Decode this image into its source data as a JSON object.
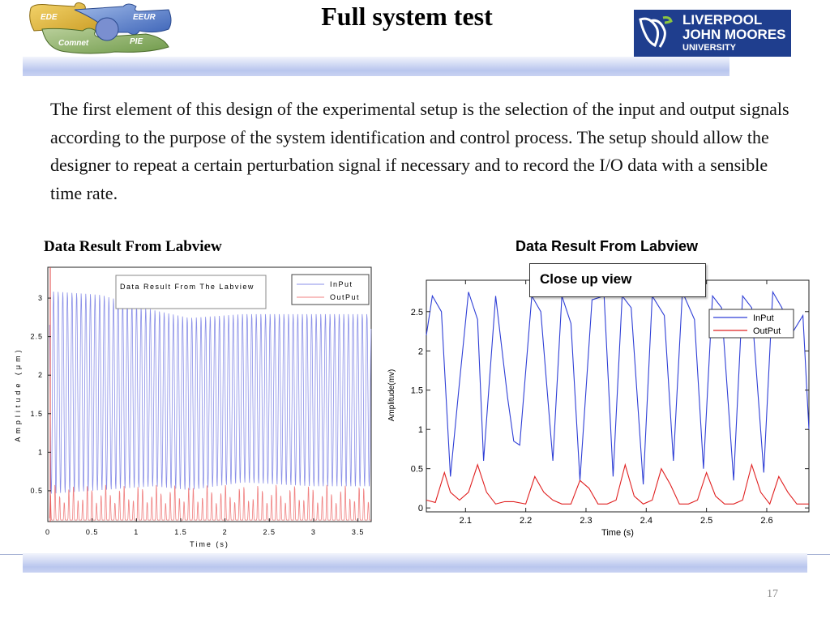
{
  "slide": {
    "title": "Full system test",
    "body": "The first element of this design of the experimental setup is the selection of the input and output signals according to the purpose of the system identification and control process. The setup should allow the designer to repeat a certain perturbation signal if necessary and to record the I/O data with a sensible time rate.",
    "left_caption": "Data Result From Labview",
    "right_caption": "Data Result From Labview",
    "closeup_label": "Close up  view",
    "page_number": "17"
  },
  "logos": {
    "puzzle_text": [
      "EDE",
      "EEUR",
      "Comnet",
      "PIE"
    ],
    "university_lines": [
      "LIVERPOOL",
      "JOHN MOORES",
      "UNIVERSITY"
    ]
  },
  "colors": {
    "input": "#2f3fd6",
    "output": "#e02020",
    "banner": "#1f3e8e"
  },
  "chart_data": [
    {
      "type": "line",
      "title": "Data Result From The Labview",
      "xlabel": "Time (s)",
      "ylabel": "Amplitude (μm)",
      "xlim": [
        0,
        3.65
      ],
      "ylim": [
        0.1,
        3.4
      ],
      "x_ticks": [
        "0",
        "0.5",
        "1",
        "1.5",
        "2",
        "2.5",
        "3",
        "3.5"
      ],
      "y_ticks": [
        "0.5",
        "1",
        "1.5",
        "2",
        "2.5",
        "3"
      ],
      "legend_position": "top-right",
      "series": [
        {
          "name": "InPut",
          "color": "#8a8fe8",
          "description_values": {
            "period_s": 0.052,
            "envelope_t": [
              0,
              0.6,
              1.2,
              1.6,
              2.2,
              3.0,
              3.65
            ],
            "max": [
              3.1,
              3.05,
              2.85,
              2.75,
              2.8,
              2.8,
              2.8
            ],
            "min": [
              0.45,
              0.5,
              0.55,
              0.5,
              0.6,
              0.55,
              0.55
            ]
          }
        },
        {
          "name": "OutPut",
          "color": "#f08080",
          "description_values": {
            "period_s": 0.052,
            "peak_min": 0.35,
            "peak_max": 0.6,
            "baseline": 0.12
          }
        }
      ]
    },
    {
      "type": "line",
      "xlabel": "Time (s)",
      "ylabel": "Amplitude(mv)",
      "xlim": [
        2.035,
        2.67
      ],
      "ylim": [
        -0.05,
        2.9
      ],
      "x_ticks": [
        "2.1",
        "2.2",
        "2.3",
        "2.4",
        "2.5",
        "2.6"
      ],
      "y_ticks": [
        "0",
        "0.5",
        "1",
        "1.5",
        "2",
        "2.5"
      ],
      "legend_position": "top-right",
      "series": [
        {
          "name": "InPut",
          "color": "#2f3fd6",
          "x": [
            2.035,
            2.045,
            2.06,
            2.075,
            2.09,
            2.105,
            2.12,
            2.13,
            2.15,
            2.17,
            2.18,
            2.19,
            2.21,
            2.225,
            2.245,
            2.26,
            2.275,
            2.29,
            2.31,
            2.33,
            2.345,
            2.36,
            2.375,
            2.395,
            2.41,
            2.43,
            2.445,
            2.46,
            2.48,
            2.495,
            2.51,
            2.525,
            2.545,
            2.56,
            2.575,
            2.595,
            2.61,
            2.625,
            2.64,
            2.66,
            2.67
          ],
          "y": [
            2.2,
            2.7,
            2.5,
            0.4,
            1.6,
            2.75,
            2.4,
            0.6,
            2.7,
            1.4,
            0.85,
            0.8,
            2.7,
            2.5,
            0.6,
            2.7,
            2.35,
            0.35,
            2.65,
            2.7,
            0.4,
            2.7,
            2.55,
            0.3,
            2.7,
            2.45,
            0.6,
            2.75,
            2.4,
            0.5,
            2.7,
            2.55,
            0.35,
            2.7,
            2.55,
            0.45,
            2.75,
            2.55,
            2.2,
            2.45,
            1.0
          ]
        },
        {
          "name": "OutPut",
          "color": "#e02020",
          "x": [
            2.035,
            2.05,
            2.065,
            2.075,
            2.09,
            2.105,
            2.12,
            2.135,
            2.15,
            2.165,
            2.18,
            2.2,
            2.215,
            2.23,
            2.245,
            2.26,
            2.275,
            2.29,
            2.305,
            2.32,
            2.335,
            2.35,
            2.365,
            2.38,
            2.395,
            2.41,
            2.425,
            2.44,
            2.455,
            2.47,
            2.485,
            2.5,
            2.515,
            2.53,
            2.545,
            2.56,
            2.575,
            2.59,
            2.605,
            2.62,
            2.635,
            2.65,
            2.67
          ],
          "y": [
            0.1,
            0.07,
            0.45,
            0.2,
            0.1,
            0.2,
            0.55,
            0.2,
            0.05,
            0.08,
            0.08,
            0.05,
            0.4,
            0.2,
            0.1,
            0.05,
            0.05,
            0.35,
            0.25,
            0.05,
            0.05,
            0.1,
            0.55,
            0.15,
            0.05,
            0.1,
            0.5,
            0.3,
            0.05,
            0.05,
            0.1,
            0.45,
            0.15,
            0.05,
            0.05,
            0.1,
            0.55,
            0.2,
            0.05,
            0.4,
            0.2,
            0.05,
            0.05
          ]
        }
      ]
    }
  ]
}
